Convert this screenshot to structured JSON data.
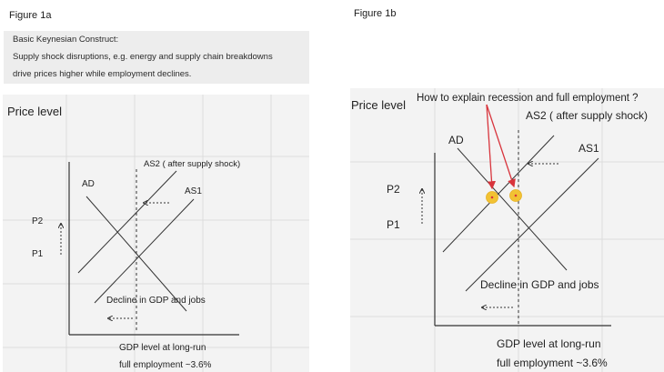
{
  "figure_a": {
    "title": "Figure 1a",
    "note_lines": [
      "Basic Keynesian Construct:",
      "Supply shock disruptions, e.g. energy and supply chain breakdowns",
      "drive prices higher while employment declines."
    ],
    "price_level_label": "Price level",
    "as2_label": "AS2 ( after supply shock)",
    "ad_label": "AD",
    "as1_label": "AS1",
    "p2_label": "P2",
    "p1_label": "P1",
    "decline_label": "Decline in GDP and jobs",
    "gdp_label_line1": "GDP level at long-run",
    "gdp_label_line2": "full employment ~3.6%"
  },
  "figure_b": {
    "title": "Figure 1b",
    "price_level_label": "Price level",
    "question_label": "How to explain recession and full employment ?",
    "as2_label": "AS2 ( after supply shock)",
    "ad_label": "AD",
    "as1_label": "AS1",
    "p2_label": "P2",
    "p1_label": "P1",
    "decline_label": "Decline in GDP and jobs",
    "gdp_label_line1": "GDP level at long-run",
    "gdp_label_line2": "full employment ~3.6%"
  },
  "colors": {
    "panel_bg": "#f3f3f3",
    "grid": "#dddddd",
    "axis": "#333333",
    "curve": "#333333",
    "annotation_arrow": "#d8343c",
    "marker_fill": "#f2c233"
  }
}
